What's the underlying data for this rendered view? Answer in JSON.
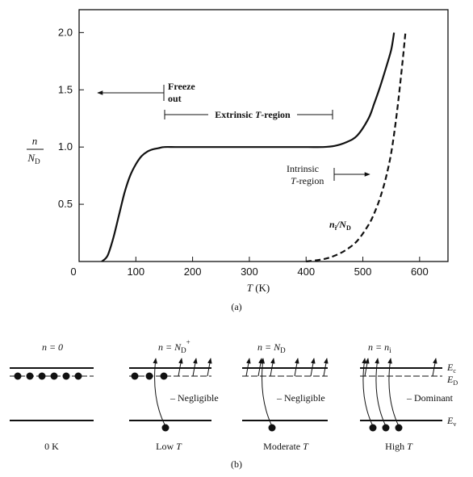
{
  "chart_data": {
    "type": "line",
    "x_axis": {
      "label_base": "T",
      "label_units": " (K)",
      "xlim": [
        0,
        650
      ],
      "ticks": [
        0,
        100,
        200,
        300,
        400,
        500,
        600
      ]
    },
    "y_axis": {
      "label_num": "n",
      "label_den_base": "N",
      "label_den_sub": "D",
      "ylim": [
        0,
        2.2
      ],
      "ticks": [
        "0.5",
        "1.0",
        "1.5",
        "2.0"
      ],
      "tick_values": [
        0.5,
        1.0,
        1.5,
        2.0
      ]
    },
    "series": [
      {
        "style": "solid",
        "x": [
          40,
          50,
          60,
          70,
          80,
          90,
          100,
          110,
          120,
          130,
          140,
          150,
          170,
          200,
          250,
          300,
          350,
          400,
          430,
          450,
          470,
          490,
          510,
          520,
          530,
          540,
          550,
          555
        ],
        "y": [
          0.0,
          0.05,
          0.2,
          0.4,
          0.6,
          0.75,
          0.85,
          0.92,
          0.96,
          0.98,
          0.99,
          1.0,
          1.0,
          1.0,
          1.0,
          1.0,
          1.0,
          1.0,
          1.0,
          1.01,
          1.04,
          1.1,
          1.25,
          1.38,
          1.52,
          1.68,
          1.85,
          2.0
        ]
      },
      {
        "name_base": "n",
        "name_sub": "i",
        "name_den_base": "N",
        "name_den_sub": "D",
        "style": "dashed",
        "x": [
          400,
          430,
          450,
          470,
          490,
          510,
          520,
          530,
          540,
          550,
          560,
          570,
          575
        ],
        "y": [
          0.0,
          0.02,
          0.05,
          0.1,
          0.18,
          0.32,
          0.42,
          0.55,
          0.72,
          0.95,
          1.3,
          1.75,
          2.0
        ]
      }
    ],
    "annotations": {
      "freeze_out": [
        "Freeze",
        "out"
      ],
      "extrinsic": {
        "pre": "Extrinsic ",
        "italic": "T",
        "post": "-region"
      },
      "intrinsic": {
        "line1": "Intrinsic",
        "italic": "T",
        "post": "-region"
      },
      "panel_a": "(a)",
      "panel_b": "(b)"
    }
  },
  "panels": [
    {
      "n_label": "n = 0",
      "caption": "0 K",
      "note": ""
    },
    {
      "n_label_pre": "n = N",
      "n_label_sub": "D",
      "n_label_sup": "+",
      "caption_pre": "Low ",
      "caption_italic": "T",
      "note": "– Negligible"
    },
    {
      "n_label_pre": "n = N",
      "n_label_sub": "D",
      "caption_pre": "Moderate ",
      "caption_italic": "T",
      "note": "– Negligible"
    },
    {
      "n_label_pre": "n = n",
      "n_label_sub": "i",
      "caption_pre": "High ",
      "caption_italic": "T",
      "note": "– Dominant"
    }
  ],
  "band_labels": {
    "ec": {
      "base": "E",
      "sub": "c"
    },
    "ed": {
      "base": "E",
      "sub": "D"
    },
    "ev": {
      "base": "E",
      "sub": "v"
    }
  }
}
